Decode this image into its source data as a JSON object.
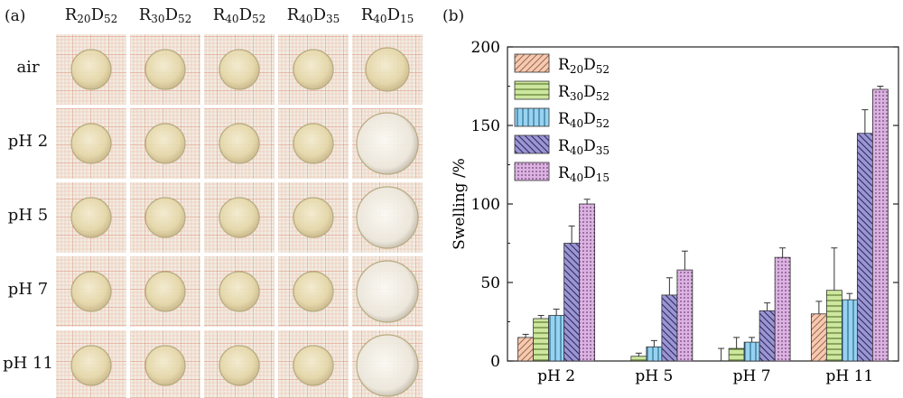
{
  "photo_panel": {
    "label": "(a)",
    "columns": [
      {
        "main1": "R",
        "sub1": "20",
        "main2": "D",
        "sub2": "52"
      },
      {
        "main1": "R",
        "sub1": "30",
        "main2": "D",
        "sub2": "52"
      },
      {
        "main1": "R",
        "sub1": "40",
        "main2": "D",
        "sub2": "52"
      },
      {
        "main1": "R",
        "sub1": "40",
        "main2": "D",
        "sub2": "35"
      },
      {
        "main1": "R",
        "sub1": "40",
        "main2": "D",
        "sub2": "15"
      }
    ],
    "rows": [
      "air",
      "pH 2",
      "pH 5",
      "pH 7",
      "pH 11"
    ]
  },
  "chart_data": {
    "type": "bar",
    "panel_label": "(b)",
    "ylabel": "Swelling /%",
    "xlabel": "",
    "ylim": [
      0,
      200
    ],
    "yticks": [
      0,
      50,
      100,
      150,
      200
    ],
    "categories": [
      "pH 2",
      "pH 5",
      "pH 7",
      "pH 11"
    ],
    "legend_position": "top-left",
    "series": [
      {
        "name": {
          "main1": "R",
          "sub1": "20",
          "main2": "D",
          "sub2": "52"
        },
        "values": [
          15,
          0,
          0,
          30
        ],
        "errors": [
          2,
          0,
          8,
          8
        ],
        "color": "#f6c9b1",
        "pattern": "diag-left"
      },
      {
        "name": {
          "main1": "R",
          "sub1": "30",
          "main2": "D",
          "sub2": "52"
        },
        "values": [
          27,
          3,
          8,
          45
        ],
        "errors": [
          2,
          2,
          7,
          27
        ],
        "color": "#cde79f",
        "pattern": "horiz"
      },
      {
        "name": {
          "main1": "R",
          "sub1": "40",
          "main2": "D",
          "sub2": "52"
        },
        "values": [
          29,
          9,
          12,
          39
        ],
        "errors": [
          4,
          4,
          3,
          4
        ],
        "color": "#97d3f1",
        "pattern": "vert"
      },
      {
        "name": {
          "main1": "R",
          "sub1": "40",
          "main2": "D",
          "sub2": "35"
        },
        "values": [
          75,
          42,
          32,
          145
        ],
        "errors": [
          11,
          11,
          5,
          15
        ],
        "color": "#9b96d2",
        "pattern": "diag-right"
      },
      {
        "name": {
          "main1": "R",
          "sub1": "40",
          "main2": "D",
          "sub2": "15"
        },
        "values": [
          100,
          58,
          66,
          173
        ],
        "errors": [
          3,
          12,
          6,
          2
        ],
        "color": "#dcb2e2",
        "pattern": "dots"
      }
    ]
  },
  "colors": {
    "grid_paper": "#f1ede3",
    "grid_line": "#e89b86",
    "disk": "#e9dfb3",
    "disk_rim": "#b9ab80"
  }
}
